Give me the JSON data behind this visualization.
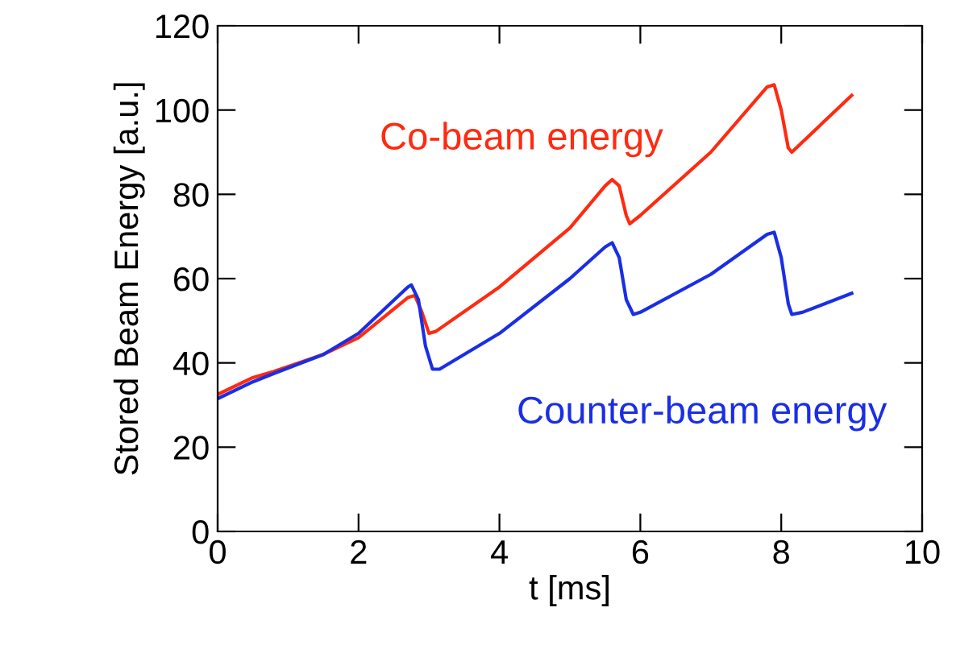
{
  "chart_data": {
    "type": "line",
    "xlabel": "t [ms]",
    "ylabel": "Stored Beam Energy [a.u.]",
    "xlim": [
      0,
      10
    ],
    "ylim": [
      0,
      120
    ],
    "xticks": [
      0,
      2,
      4,
      6,
      8,
      10
    ],
    "yticks": [
      0,
      20,
      40,
      60,
      80,
      100,
      120
    ],
    "grid": false,
    "legend": false,
    "marker": "none",
    "line_style": "solid",
    "series": [
      {
        "name": "Co-beam energy",
        "color": "#ff2a10",
        "x": [
          0,
          0.5,
          0.8,
          1.5,
          2,
          2.7,
          2.8,
          2.9,
          3.0,
          3.1,
          4,
          5,
          5.5,
          5.6,
          5.7,
          5.8,
          5.85,
          6,
          7,
          7.8,
          7.9,
          8.0,
          8.1,
          8.15,
          9
        ],
        "values": [
          32.5,
          36.5,
          38,
          42,
          46,
          55.5,
          56,
          52,
          47,
          47.5,
          58,
          72,
          82,
          83.5,
          82,
          75,
          73,
          75,
          90,
          105.5,
          106,
          100,
          91,
          90,
          103.5
        ]
      },
      {
        "name": "Counter-beam energy",
        "color": "#1a2ee6",
        "x": [
          0,
          0.5,
          0.8,
          1.5,
          2,
          2.7,
          2.75,
          2.85,
          2.95,
          3.05,
          3.15,
          4,
          5,
          5.5,
          5.6,
          5.7,
          5.8,
          5.9,
          6,
          7,
          7.8,
          7.9,
          8.0,
          8.1,
          8.15,
          8.3,
          9
        ],
        "values": [
          31.5,
          35.5,
          37.5,
          42,
          47,
          58,
          58.5,
          55,
          44,
          38.5,
          38.5,
          47,
          60,
          67.5,
          68.5,
          65,
          55,
          51.5,
          52,
          61,
          70.5,
          71,
          65,
          54,
          51.5,
          52,
          56.5
        ]
      }
    ]
  }
}
